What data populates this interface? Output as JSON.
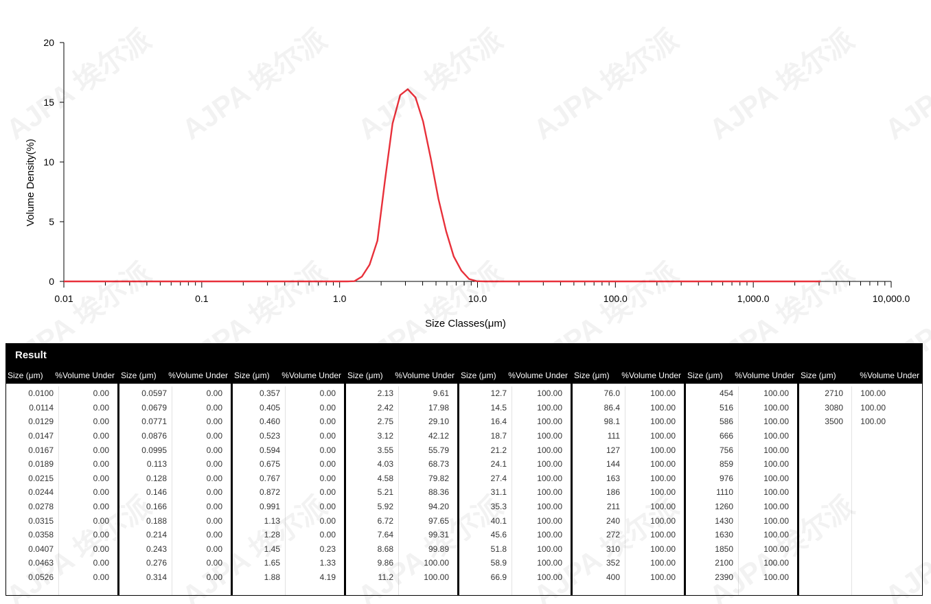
{
  "chart_data": {
    "type": "line",
    "xlabel": "Size Classes(μm)",
    "ylabel": "Volume Density(%)",
    "xscale": "log",
    "xlim": [
      0.01,
      10000
    ],
    "ylim": [
      0,
      20
    ],
    "x_ticks": [
      "0.01",
      "0.1",
      "1.0",
      "10.0",
      "100.0",
      "1,000.0",
      "10,000.0"
    ],
    "y_ticks": [
      "0",
      "5",
      "10",
      "15",
      "20"
    ],
    "grid": false,
    "series": [
      {
        "color": "#e8303a",
        "x": [
          0.01,
          0.0114,
          0.0129,
          0.0147,
          0.0167,
          0.0189,
          0.0215,
          0.0244,
          0.0278,
          0.0315,
          0.0358,
          0.0407,
          0.0463,
          0.0526,
          0.0597,
          0.0679,
          0.0771,
          0.0876,
          0.0995,
          0.113,
          0.128,
          0.146,
          0.166,
          0.188,
          0.214,
          0.243,
          0.276,
          0.314,
          0.357,
          0.405,
          0.46,
          0.523,
          0.594,
          0.675,
          0.767,
          0.872,
          0.991,
          1.13,
          1.28,
          1.45,
          1.65,
          1.88,
          2.13,
          2.42,
          2.75,
          3.12,
          3.55,
          4.03,
          4.58,
          5.21,
          5.92,
          6.72,
          7.64,
          8.68,
          9.86,
          11.2,
          12.7,
          14.5,
          16.4,
          18.7,
          21.2,
          24.1,
          27.4,
          31.1,
          35.3,
          40.1,
          45.6,
          51.8,
          58.9,
          66.9,
          76.0,
          86.4,
          98.1,
          111,
          127,
          144,
          163,
          186,
          211,
          240,
          272,
          310,
          352,
          400,
          454,
          516,
          586,
          666,
          756,
          859,
          976,
          1110,
          1260,
          1430,
          1630,
          1850,
          2100,
          2390,
          2710,
          3080
        ],
        "y": [
          0,
          0,
          0,
          0,
          0,
          0,
          0,
          0,
          0,
          0,
          0,
          0,
          0,
          0,
          0,
          0,
          0,
          0,
          0,
          0,
          0,
          0,
          0,
          0,
          0,
          0,
          0,
          0,
          0,
          0,
          0,
          0,
          0,
          0,
          0,
          0,
          0,
          0,
          0.02,
          0.4,
          1.4,
          3.4,
          8.4,
          13.2,
          15.6,
          16.1,
          15.4,
          13.4,
          10.3,
          6.9,
          4.2,
          2.1,
          0.9,
          0.2,
          0.02,
          0,
          0,
          0,
          0,
          0,
          0,
          0,
          0,
          0,
          0,
          0,
          0,
          0,
          0,
          0,
          0,
          0,
          0,
          0,
          0,
          0,
          0,
          0,
          0,
          0,
          0,
          0,
          0,
          0,
          0,
          0,
          0,
          0,
          0,
          0,
          0,
          0,
          0,
          0,
          0,
          0,
          0,
          0,
          0,
          0
        ]
      }
    ]
  },
  "result": {
    "title": "Result",
    "col_size_label": "Size (μm)",
    "col_vol_label": "%Volume Under",
    "groups": [
      {
        "rows": [
          [
            "0.0100",
            "0.00"
          ],
          [
            "0.0114",
            "0.00"
          ],
          [
            "0.0129",
            "0.00"
          ],
          [
            "0.0147",
            "0.00"
          ],
          [
            "0.0167",
            "0.00"
          ],
          [
            "0.0189",
            "0.00"
          ],
          [
            "0.0215",
            "0.00"
          ],
          [
            "0.0244",
            "0.00"
          ],
          [
            "0.0278",
            "0.00"
          ],
          [
            "0.0315",
            "0.00"
          ],
          [
            "0.0358",
            "0.00"
          ],
          [
            "0.0407",
            "0.00"
          ],
          [
            "0.0463",
            "0.00"
          ],
          [
            "0.0526",
            "0.00"
          ]
        ]
      },
      {
        "rows": [
          [
            "0.0597",
            "0.00"
          ],
          [
            "0.0679",
            "0.00"
          ],
          [
            "0.0771",
            "0.00"
          ],
          [
            "0.0876",
            "0.00"
          ],
          [
            "0.0995",
            "0.00"
          ],
          [
            "0.113",
            "0.00"
          ],
          [
            "0.128",
            "0.00"
          ],
          [
            "0.146",
            "0.00"
          ],
          [
            "0.166",
            "0.00"
          ],
          [
            "0.188",
            "0.00"
          ],
          [
            "0.214",
            "0.00"
          ],
          [
            "0.243",
            "0.00"
          ],
          [
            "0.276",
            "0.00"
          ],
          [
            "0.314",
            "0.00"
          ]
        ]
      },
      {
        "rows": [
          [
            "0.357",
            "0.00"
          ],
          [
            "0.405",
            "0.00"
          ],
          [
            "0.460",
            "0.00"
          ],
          [
            "0.523",
            "0.00"
          ],
          [
            "0.594",
            "0.00"
          ],
          [
            "0.675",
            "0.00"
          ],
          [
            "0.767",
            "0.00"
          ],
          [
            "0.872",
            "0.00"
          ],
          [
            "0.991",
            "0.00"
          ],
          [
            "1.13",
            "0.00"
          ],
          [
            "1.28",
            "0.00"
          ],
          [
            "1.45",
            "0.23"
          ],
          [
            "1.65",
            "1.33"
          ],
          [
            "1.88",
            "4.19"
          ]
        ]
      },
      {
        "rows": [
          [
            "2.13",
            "9.61"
          ],
          [
            "2.42",
            "17.98"
          ],
          [
            "2.75",
            "29.10"
          ],
          [
            "3.12",
            "42.12"
          ],
          [
            "3.55",
            "55.79"
          ],
          [
            "4.03",
            "68.73"
          ],
          [
            "4.58",
            "79.82"
          ],
          [
            "5.21",
            "88.36"
          ],
          [
            "5.92",
            "94.20"
          ],
          [
            "6.72",
            "97.65"
          ],
          [
            "7.64",
            "99.31"
          ],
          [
            "8.68",
            "99.89"
          ],
          [
            "9.86",
            "100.00"
          ],
          [
            "11.2",
            "100.00"
          ]
        ]
      },
      {
        "rows": [
          [
            "12.7",
            "100.00"
          ],
          [
            "14.5",
            "100.00"
          ],
          [
            "16.4",
            "100.00"
          ],
          [
            "18.7",
            "100.00"
          ],
          [
            "21.2",
            "100.00"
          ],
          [
            "24.1",
            "100.00"
          ],
          [
            "27.4",
            "100.00"
          ],
          [
            "31.1",
            "100.00"
          ],
          [
            "35.3",
            "100.00"
          ],
          [
            "40.1",
            "100.00"
          ],
          [
            "45.6",
            "100.00"
          ],
          [
            "51.8",
            "100.00"
          ],
          [
            "58.9",
            "100.00"
          ],
          [
            "66.9",
            "100.00"
          ]
        ]
      },
      {
        "rows": [
          [
            "76.0",
            "100.00"
          ],
          [
            "86.4",
            "100.00"
          ],
          [
            "98.1",
            "100.00"
          ],
          [
            "111",
            "100.00"
          ],
          [
            "127",
            "100.00"
          ],
          [
            "144",
            "100.00"
          ],
          [
            "163",
            "100.00"
          ],
          [
            "186",
            "100.00"
          ],
          [
            "211",
            "100.00"
          ],
          [
            "240",
            "100.00"
          ],
          [
            "272",
            "100.00"
          ],
          [
            "310",
            "100.00"
          ],
          [
            "352",
            "100.00"
          ],
          [
            "400",
            "100.00"
          ]
        ]
      },
      {
        "rows": [
          [
            "454",
            "100.00"
          ],
          [
            "516",
            "100.00"
          ],
          [
            "586",
            "100.00"
          ],
          [
            "666",
            "100.00"
          ],
          [
            "756",
            "100.00"
          ],
          [
            "859",
            "100.00"
          ],
          [
            "976",
            "100.00"
          ],
          [
            "1110",
            "100.00"
          ],
          [
            "1260",
            "100.00"
          ],
          [
            "1430",
            "100.00"
          ],
          [
            "1630",
            "100.00"
          ],
          [
            "1850",
            "100.00"
          ],
          [
            "2100",
            "100.00"
          ],
          [
            "2390",
            "100.00"
          ]
        ]
      },
      {
        "rows": [
          [
            "2710",
            "100.00"
          ],
          [
            "3080",
            "100.00"
          ],
          [
            "3500",
            "100.00"
          ]
        ]
      }
    ]
  },
  "watermark": {
    "text": "AJPA 埃尔派"
  }
}
